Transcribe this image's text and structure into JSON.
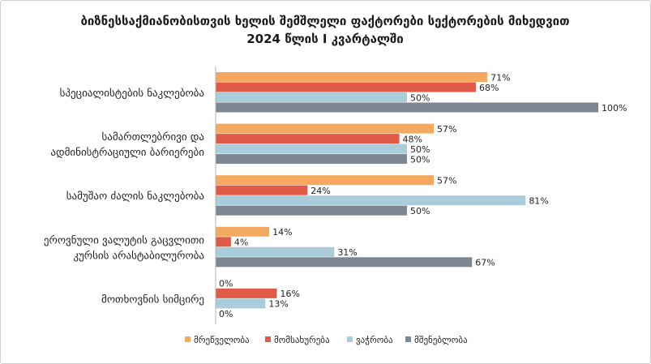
{
  "chart_data": {
    "type": "bar",
    "orientation": "horizontal",
    "title": [
      "ბიზნესსაქმიანობისთვის ხელის შემშლელი ფაქტორები სექტორების მიხედვით",
      "2024 წლის I კვარტალში"
    ],
    "categories": [
      [
        "სპეციალისტების ნაკლებობა"
      ],
      [
        "სამართლებრივი და",
        "ადმინისტრაციული ბარიერები"
      ],
      [
        "სამუშაო ძალის ნაკლებობა"
      ],
      [
        "ეროვნული ვალუტის გაცვლითი",
        "კურსის არასტაბილურობა"
      ],
      [
        "მოთხოვნის სიმცირე"
      ]
    ],
    "series": [
      {
        "name": "მრეწველობა",
        "color": "#f5a860",
        "values": [
          71,
          57,
          57,
          14,
          0
        ]
      },
      {
        "name": "მომსახურება",
        "color": "#e05a47",
        "values": [
          68,
          48,
          24,
          4,
          16
        ]
      },
      {
        "name": "ვაჭრობა",
        "color": "#a9cddb",
        "values": [
          50,
          50,
          81,
          31,
          13
        ]
      },
      {
        "name": "მშენებლობა",
        "color": "#7d8791",
        "values": [
          100,
          50,
          50,
          67,
          0
        ]
      }
    ],
    "value_suffix": "%",
    "xlim": [
      0,
      100
    ],
    "grid": false,
    "legend_position": "bottom"
  }
}
